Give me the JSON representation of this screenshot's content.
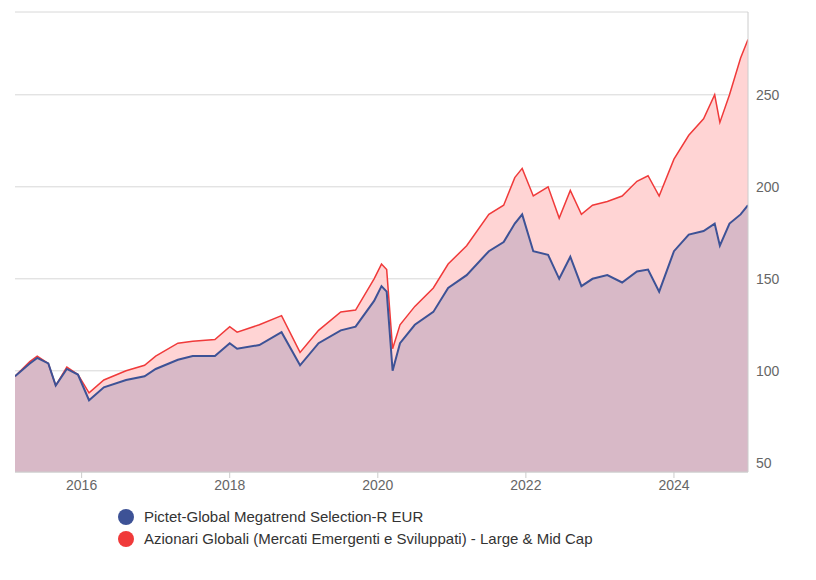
{
  "chart_data": {
    "type": "area",
    "x": [
      2015.1,
      2015.3,
      2015.4,
      2015.55,
      2015.65,
      2015.8,
      2015.95,
      2016.1,
      2016.3,
      2016.6,
      2016.85,
      2017.0,
      2017.3,
      2017.5,
      2017.8,
      2018.0,
      2018.1,
      2018.4,
      2018.7,
      2018.95,
      2019.2,
      2019.5,
      2019.7,
      2019.95,
      2020.05,
      2020.12,
      2020.2,
      2020.3,
      2020.5,
      2020.75,
      2020.95,
      2021.2,
      2021.5,
      2021.7,
      2021.85,
      2021.95,
      2022.1,
      2022.3,
      2022.45,
      2022.6,
      2022.75,
      2022.9,
      2023.1,
      2023.3,
      2023.5,
      2023.65,
      2023.8,
      2024.0,
      2024.2,
      2024.4,
      2024.55,
      2024.62,
      2024.75,
      2024.9,
      2025.0
    ],
    "series": [
      {
        "name": "Azionari Globali (Mercati Emergenti e Sviluppati) - Large & Mid Cap",
        "color": "#f03a3a",
        "values": [
          97,
          105,
          108,
          104,
          92,
          102,
          98,
          88,
          95,
          100,
          103,
          108,
          115,
          116,
          117,
          124,
          121,
          125,
          130,
          110,
          122,
          132,
          133,
          150,
          158,
          155,
          112,
          125,
          135,
          145,
          158,
          168,
          185,
          190,
          205,
          210,
          195,
          200,
          183,
          198,
          185,
          190,
          192,
          195,
          203,
          206,
          195,
          215,
          228,
          237,
          250,
          235,
          250,
          270,
          280
        ]
      },
      {
        "name": "Pictet-Global Megatrend Selection-R EUR",
        "color": "#3d5296",
        "values": [
          97,
          104,
          107,
          104,
          92,
          101,
          98,
          84,
          91,
          95,
          97,
          101,
          106,
          108,
          108,
          115,
          112,
          114,
          121,
          103,
          115,
          122,
          124,
          138,
          146,
          143,
          100,
          115,
          125,
          132,
          145,
          152,
          165,
          170,
          180,
          185,
          165,
          163,
          150,
          162,
          146,
          150,
          152,
          148,
          154,
          155,
          143,
          165,
          174,
          176,
          180,
          168,
          180,
          185,
          190
        ]
      }
    ],
    "xlim": [
      2015.1,
      2025.0
    ],
    "xticks": [
      2016,
      2018,
      2020,
      2022,
      2024
    ],
    "ylim": [
      45,
      295
    ],
    "yticks": [
      50,
      100,
      150,
      200,
      250
    ],
    "grid": true,
    "legend": "bottom"
  }
}
